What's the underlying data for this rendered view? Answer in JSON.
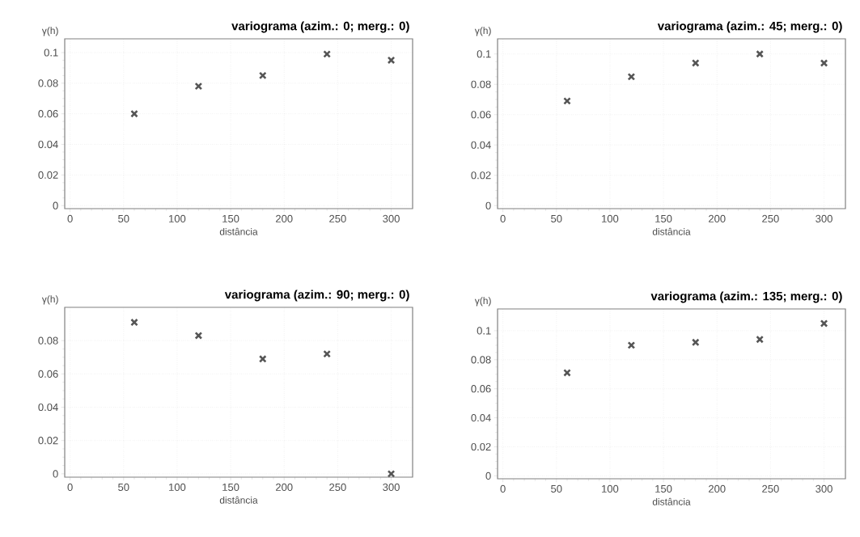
{
  "chart_data": [
    {
      "type": "scatter",
      "title": "variograma (azim.: 0; merg.: 0)",
      "xlabel": "distância",
      "ylabel": "γ(h)",
      "x": [
        60,
        120,
        180,
        240,
        300
      ],
      "values": [
        0.06,
        0.078,
        0.085,
        0.099,
        0.095
      ],
      "color": "#555555",
      "marker": "cross",
      "grid": true,
      "xlim": [
        -5,
        320
      ],
      "ylim": [
        -0.002,
        0.109
      ],
      "xticks": [
        0,
        50,
        100,
        150,
        200,
        250,
        300
      ],
      "yticks": [
        0,
        0.02,
        0.04,
        0.06,
        0.08,
        0.1
      ]
    },
    {
      "type": "scatter",
      "title": "variograma (azim.: 45; merg.: 0)",
      "xlabel": "distância",
      "ylabel": "γ(h)",
      "x": [
        60,
        120,
        180,
        240,
        300
      ],
      "values": [
        0.069,
        0.085,
        0.094,
        0.1,
        0.094
      ],
      "color": "#555555",
      "marker": "cross",
      "grid": true,
      "xlim": [
        -5,
        320
      ],
      "ylim": [
        -0.002,
        0.11
      ],
      "xticks": [
        0,
        50,
        100,
        150,
        200,
        250,
        300
      ],
      "yticks": [
        0,
        0.02,
        0.04,
        0.06,
        0.08,
        0.1
      ]
    },
    {
      "type": "scatter",
      "title": "variograma (azim.: 90; merg.: 0)",
      "xlabel": "distância",
      "ylabel": "γ(h)",
      "x": [
        60,
        120,
        180,
        240,
        300
      ],
      "values": [
        0.091,
        0.083,
        0.069,
        0.072,
        0.0
      ],
      "color": "#555555",
      "marker": "cross",
      "grid": true,
      "xlim": [
        -5,
        320
      ],
      "ylim": [
        -0.002,
        0.1
      ],
      "xticks": [
        0,
        50,
        100,
        150,
        200,
        250,
        300
      ],
      "yticks": [
        0,
        0.02,
        0.04,
        0.06,
        0.08
      ]
    },
    {
      "type": "scatter",
      "title": "variograma (azim.: 135; merg.: 0)",
      "xlabel": "distância",
      "ylabel": "γ(h)",
      "x": [
        60,
        120,
        180,
        240,
        300
      ],
      "values": [
        0.071,
        0.09,
        0.092,
        0.094,
        0.105
      ],
      "color": "#555555",
      "marker": "cross",
      "grid": true,
      "xlim": [
        -5,
        320
      ],
      "ylim": [
        -0.002,
        0.115
      ],
      "xticks": [
        0,
        50,
        100,
        150,
        200,
        250,
        300
      ],
      "yticks": [
        0,
        0.02,
        0.04,
        0.06,
        0.08,
        0.1
      ]
    }
  ]
}
